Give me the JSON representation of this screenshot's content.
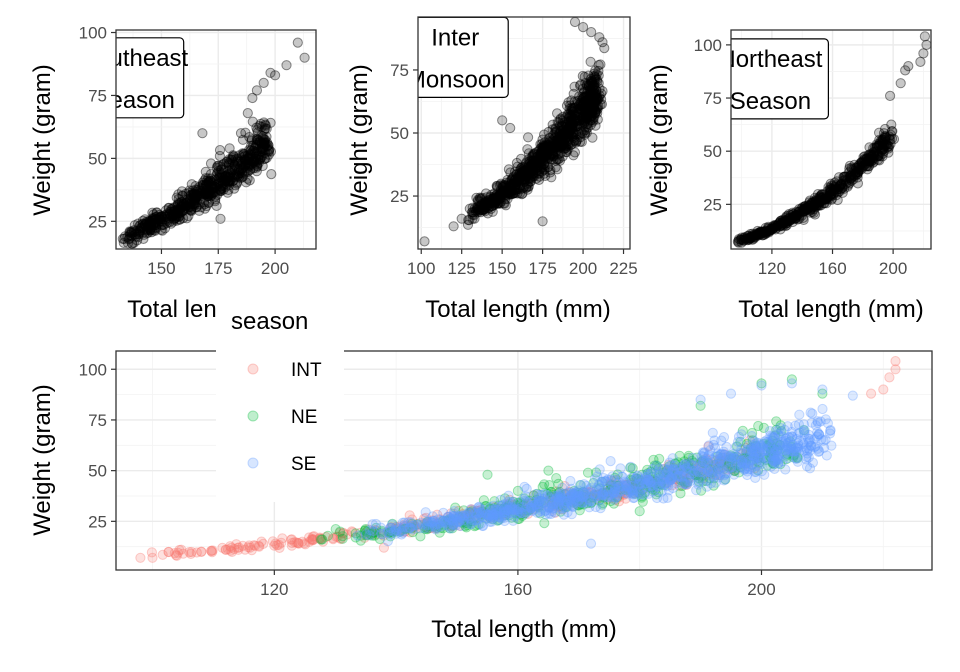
{
  "chart_data": [
    {
      "id": "se",
      "type": "scatter",
      "xlabel": "Total length (mm)",
      "ylabel": "Weight (gram)",
      "xlim": [
        130,
        218
      ],
      "ylim": [
        14,
        101
      ],
      "x_ticks": [
        150,
        175,
        200
      ],
      "y_ticks": [
        25,
        50,
        75,
        100
      ],
      "point_color": "#000000",
      "annotation": {
        "lines": [
          "Southeast",
          "Season"
        ],
        "x": 138,
        "y": 82
      },
      "series": [
        {
          "name": "",
          "shape": "power",
          "a": 1.62e-05,
          "b": 2.85,
          "xmin": 133,
          "xmax": 197,
          "n": 600,
          "jitter": 0.085,
          "points": [
            [
              133,
              18
            ],
            [
              134,
              19
            ],
            [
              137,
              21
            ],
            [
              140,
              20
            ],
            [
              142,
              24
            ],
            [
              150,
              27
            ],
            [
              160,
              32
            ],
            [
              165,
              39
            ],
            [
              170,
              41
            ],
            [
              175,
              47
            ],
            [
              180,
              54
            ],
            [
              185,
              60
            ],
            [
              188,
              68
            ],
            [
              190,
              74
            ],
            [
              192,
              77
            ],
            [
              195,
              80
            ],
            [
              198,
              84
            ],
            [
              200,
              83
            ],
            [
              205,
              87
            ],
            [
              210,
              96
            ],
            [
              213,
              90
            ],
            [
              176,
              26
            ],
            [
              168,
              60
            ],
            [
              182,
              38
            ]
          ]
        }
      ]
    },
    {
      "id": "inter",
      "type": "scatter",
      "xlabel": "Total length (mm)",
      "ylabel": "Weight (gram)",
      "xlim": [
        98,
        229
      ],
      "ylim": [
        4,
        96
      ],
      "x_ticks": [
        100,
        125,
        150,
        175,
        200,
        225
      ],
      "y_ticks": [
        25,
        50,
        75
      ],
      "point_color": "#000000",
      "annotation": {
        "lines": [
          "Inter",
          "Monsoon"
        ],
        "x": 121,
        "y": 80
      },
      "series": [
        {
          "name": "",
          "shape": "power",
          "a": 1.62e-05,
          "b": 2.85,
          "xmin": 130,
          "xmax": 210,
          "n": 900,
          "jitter": 0.09,
          "points": [
            [
              102,
              7
            ],
            [
              120,
              13
            ],
            [
              125,
              16
            ],
            [
              130,
              20
            ],
            [
              135,
              23
            ],
            [
              140,
              26
            ],
            [
              175,
              15
            ],
            [
              150,
              55
            ],
            [
              155,
              52
            ],
            [
              165,
              38
            ],
            [
              205,
              90
            ],
            [
              210,
              88
            ],
            [
              212,
              86
            ],
            [
              200,
              92
            ],
            [
              195,
              94
            ]
          ]
        }
      ]
    },
    {
      "id": "ne",
      "type": "scatter",
      "xlabel": "Total length (mm)",
      "ylabel": "Weight (gram)",
      "xlim": [
        93,
        225
      ],
      "ylim": [
        4,
        107
      ],
      "x_ticks": [
        120,
        160,
        200
      ],
      "y_ticks": [
        25,
        50,
        75,
        100
      ],
      "point_color": "#000000",
      "annotation": {
        "lines": [
          "Northeast",
          "Season"
        ],
        "x": 119,
        "y": 84
      },
      "series": [
        {
          "name": "",
          "shape": "power",
          "a": 1.62e-05,
          "b": 2.85,
          "xmin": 98,
          "xmax": 200,
          "n": 500,
          "jitter": 0.06,
          "points": [
            [
              98,
              7
            ],
            [
              100,
              7
            ],
            [
              205,
              82
            ],
            [
              208,
              88
            ],
            [
              210,
              90
            ],
            [
              218,
              92
            ],
            [
              220,
              96
            ],
            [
              221,
              104
            ],
            [
              222,
              100
            ],
            [
              198,
              76
            ]
          ]
        }
      ]
    },
    {
      "id": "combined",
      "type": "scatter",
      "xlabel": "Total length (mm)",
      "ylabel": "Weight (gram)",
      "xlim": [
        94,
        228
      ],
      "ylim": [
        1,
        109
      ],
      "x_ticks": [
        120,
        160,
        200
      ],
      "y_ticks": [
        25,
        50,
        75,
        100
      ],
      "legend": {
        "title": "season",
        "placement": "left"
      },
      "series": [
        {
          "name": "INT",
          "color": "#F8766D",
          "shape": "power",
          "a": 1.62e-05,
          "b": 2.85,
          "xmin": 98,
          "xmax": 200,
          "n": 380,
          "jitter": 0.07,
          "points": [
            [
              98,
              7
            ],
            [
              100,
              7
            ],
            [
              104,
              8
            ],
            [
              108,
              10
            ],
            [
              112,
              11
            ],
            [
              116,
              12
            ],
            [
              120,
              13
            ],
            [
              124,
              14
            ],
            [
              128,
              15
            ],
            [
              138,
              12
            ],
            [
              218,
              88
            ],
            [
              220,
              90
            ],
            [
              222,
              100
            ],
            [
              222,
              104
            ],
            [
              221,
              96
            ]
          ]
        },
        {
          "name": "NE",
          "color": "#00BA38",
          "shape": "power",
          "a": 1.62e-05,
          "b": 2.85,
          "xmin": 128,
          "xmax": 205,
          "n": 420,
          "jitter": 0.1,
          "points": [
            [
              155,
              48
            ],
            [
              160,
              40
            ],
            [
              165,
              50
            ],
            [
              170,
              38
            ],
            [
              172,
              34
            ],
            [
              180,
              30
            ],
            [
              190,
              82
            ],
            [
              200,
              93
            ],
            [
              205,
              95
            ],
            [
              210,
              88
            ]
          ]
        },
        {
          "name": "SE",
          "color": "#619CFF",
          "shape": "power",
          "a": 1.62e-05,
          "b": 2.85,
          "xmin": 135,
          "xmax": 210,
          "n": 900,
          "jitter": 0.09,
          "points": [
            [
              172,
              14
            ],
            [
              200,
              92
            ],
            [
              205,
              93
            ],
            [
              210,
              90
            ],
            [
              215,
              87
            ],
            [
              190,
              85
            ],
            [
              195,
              88
            ]
          ]
        }
      ]
    }
  ]
}
